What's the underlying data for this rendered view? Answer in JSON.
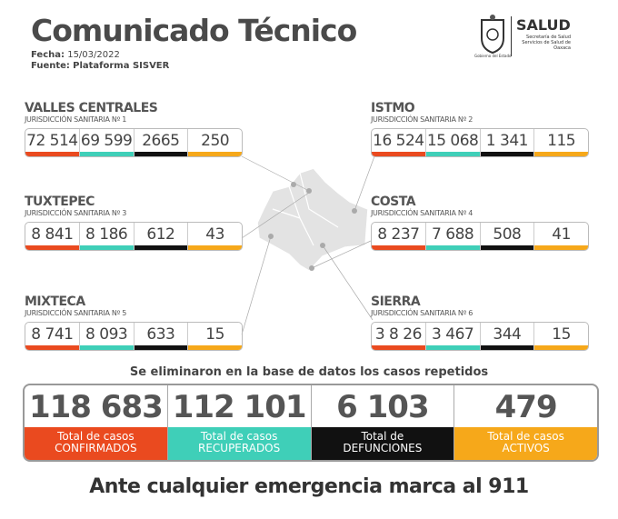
{
  "header": {
    "title": "Comunicado Técnico",
    "fecha_label": "Fecha:",
    "fecha": "15/03/2022",
    "fuente_label": "Fuente:",
    "fuente": "Plataforma SISVER"
  },
  "logo": {
    "name": "SALUD",
    "line1": "Secretaría de Salud",
    "line2": "Servicios de Salud de Oaxaca",
    "gov": "Gobierno del Estado"
  },
  "colors": {
    "confirmados": "#ea4a1f",
    "recuperados": "#3fcfb8",
    "defunciones": "#111111",
    "activos": "#f6a81a"
  },
  "regions": [
    {
      "name": "VALLES CENTRALES",
      "sub": "JURISDICCIÓN SANITARIA Nº 1",
      "values": [
        "72 514",
        "69 599",
        "2665",
        "250"
      ]
    },
    {
      "name": "ISTMO",
      "sub": "JURISDICCIÓN SANITARIA Nº 2",
      "values": [
        "16 524",
        "15 068",
        "1 341",
        "115"
      ]
    },
    {
      "name": "TUXTEPEC",
      "sub": "JURISDICCIÓN SANITARIA Nº 3",
      "values": [
        "8 841",
        "8 186",
        "612",
        "43"
      ]
    },
    {
      "name": "COSTA",
      "sub": "JURISDICCIÓN SANITARIA Nº 4",
      "values": [
        "8 237",
        "7 688",
        "508",
        "41"
      ]
    },
    {
      "name": "MIXTECA",
      "sub": "JURISDICCIÓN SANITARIA Nº 5",
      "values": [
        "8 741",
        "8 093",
        "633",
        "15"
      ]
    },
    {
      "name": "SIERRA",
      "sub": "JURISDICCIÓN SANITARIA Nº 6",
      "values": [
        "3 8 26",
        "3 467",
        "344",
        "15"
      ]
    }
  ],
  "note": "Se eliminaron en la base de datos los casos repetidos",
  "totals": [
    {
      "value": "118 683",
      "l1": "Total de casos",
      "l2": "CONFIRMADOS"
    },
    {
      "value": "112 101",
      "l1": "Total de casos",
      "l2": "RECUPERADOS"
    },
    {
      "value": "6 103",
      "l1": "Total de",
      "l2": "DEFUNCIONES"
    },
    {
      "value": "479",
      "l1": "Total de casos",
      "l2": "ACTIVOS"
    }
  ],
  "footer": "Ante cualquier emergencia marca al 911"
}
